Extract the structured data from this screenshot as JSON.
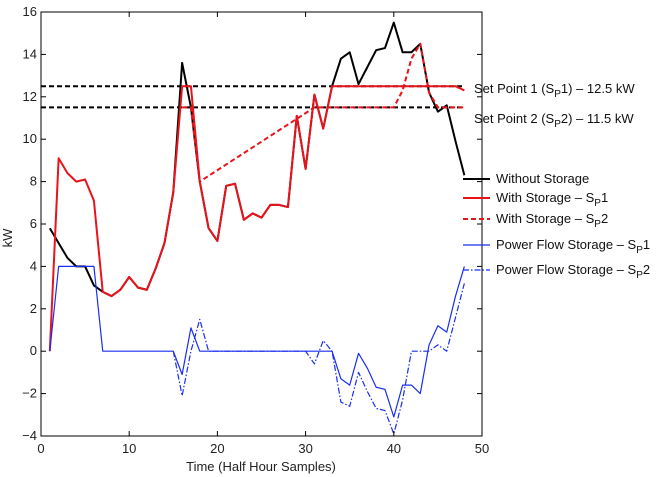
{
  "chart_data": {
    "type": "line",
    "title": "",
    "xlabel": "Time (Half Hour Samples)",
    "ylabel": "kW",
    "xlim": [
      0,
      50
    ],
    "ylim": [
      -4,
      16
    ],
    "x_ticks": [
      0,
      10,
      20,
      30,
      40,
      50
    ],
    "y_ticks": [
      -4,
      -2,
      0,
      2,
      4,
      6,
      8,
      10,
      12,
      14,
      16
    ],
    "grid": false,
    "legend_position": "right",
    "series": [
      {
        "name": "Without Storage",
        "color": "#000000",
        "dash": "solid",
        "points": [
          [
            1,
            5.8
          ],
          [
            2,
            5.1
          ],
          [
            3,
            4.4
          ],
          [
            4,
            4.0
          ],
          [
            5,
            4.0
          ],
          [
            6,
            3.1
          ],
          [
            7,
            2.8
          ],
          [
            8,
            2.6
          ],
          [
            9,
            2.9
          ],
          [
            10,
            3.5
          ],
          [
            11,
            3.0
          ],
          [
            12,
            2.9
          ],
          [
            13,
            3.9
          ],
          [
            14,
            5.1
          ],
          [
            15,
            7.5
          ],
          [
            16,
            13.6
          ],
          [
            17,
            11.5
          ],
          [
            18,
            8.0
          ],
          [
            19,
            5.8
          ],
          [
            20,
            5.2
          ],
          [
            21,
            7.8
          ],
          [
            22,
            7.9
          ],
          [
            23,
            6.2
          ],
          [
            24,
            6.5
          ],
          [
            25,
            6.3
          ],
          [
            26,
            6.9
          ],
          [
            27,
            6.9
          ],
          [
            28,
            6.8
          ],
          [
            29,
            11.1
          ],
          [
            30,
            8.6
          ],
          [
            31,
            12.1
          ],
          [
            32,
            10.5
          ],
          [
            33,
            12.5
          ],
          [
            34,
            13.8
          ],
          [
            35,
            14.1
          ],
          [
            36,
            12.6
          ],
          [
            37,
            13.4
          ],
          [
            38,
            14.2
          ],
          [
            39,
            14.3
          ],
          [
            40,
            15.5
          ],
          [
            41,
            14.1
          ],
          [
            42,
            14.1
          ],
          [
            43,
            14.5
          ],
          [
            44,
            12.2
          ],
          [
            45,
            11.3
          ],
          [
            46,
            11.6
          ],
          [
            47,
            9.9
          ],
          [
            48,
            8.3
          ]
        ]
      },
      {
        "name": "With Storage - SP1",
        "color": "#e8141c",
        "dash": "solid",
        "points": [
          [
            1,
            0.0
          ],
          [
            2,
            9.1
          ],
          [
            3,
            8.4
          ],
          [
            4,
            8.0
          ],
          [
            5,
            8.1
          ],
          [
            6,
            7.1
          ],
          [
            7,
            2.8
          ],
          [
            8,
            2.6
          ],
          [
            9,
            2.9
          ],
          [
            10,
            3.5
          ],
          [
            11,
            3.0
          ],
          [
            12,
            2.9
          ],
          [
            13,
            3.9
          ],
          [
            14,
            5.1
          ],
          [
            15,
            7.5
          ],
          [
            16,
            12.5
          ],
          [
            17,
            12.5
          ],
          [
            18,
            8.0
          ],
          [
            19,
            5.8
          ],
          [
            20,
            5.2
          ],
          [
            21,
            7.8
          ],
          [
            22,
            7.9
          ],
          [
            23,
            6.2
          ],
          [
            24,
            6.5
          ],
          [
            25,
            6.3
          ],
          [
            26,
            6.9
          ],
          [
            27,
            6.9
          ],
          [
            28,
            6.8
          ],
          [
            29,
            11.1
          ],
          [
            30,
            8.6
          ],
          [
            31,
            12.1
          ],
          [
            32,
            10.5
          ],
          [
            33,
            12.5
          ],
          [
            34,
            12.5
          ],
          [
            35,
            12.5
          ],
          [
            36,
            12.5
          ],
          [
            37,
            12.5
          ],
          [
            38,
            12.5
          ],
          [
            39,
            12.5
          ],
          [
            40,
            12.5
          ],
          [
            41,
            12.5
          ],
          [
            42,
            12.5
          ],
          [
            43,
            12.5
          ],
          [
            44,
            12.5
          ],
          [
            45,
            12.5
          ],
          [
            46,
            12.5
          ],
          [
            47,
            12.5
          ],
          [
            48,
            12.3
          ]
        ]
      },
      {
        "name": "With Storage - SP2",
        "color": "#e8141c",
        "dash": "dashed",
        "points": [
          [
            16,
            11.5
          ],
          [
            17,
            11.5
          ],
          [
            18,
            8.0
          ],
          [
            31,
            11.5
          ],
          [
            32,
            11.5
          ],
          [
            33,
            11.5
          ],
          [
            34,
            11.5
          ],
          [
            35,
            11.5
          ],
          [
            36,
            11.5
          ],
          [
            37,
            11.5
          ],
          [
            38,
            11.5
          ],
          [
            39,
            11.5
          ],
          [
            40,
            11.5
          ],
          [
            41,
            12.3
          ],
          [
            42,
            13.8
          ],
          [
            43,
            14.5
          ],
          [
            44,
            12.2
          ],
          [
            45,
            11.5
          ],
          [
            46,
            11.5
          ],
          [
            47,
            11.5
          ],
          [
            48,
            11.5
          ]
        ]
      },
      {
        "name": "Power Flow Storage - SP1",
        "color": "#1a2ef0",
        "dash": "solid",
        "points": [
          [
            1,
            0.0
          ],
          [
            2,
            4.0
          ],
          [
            3,
            4.0
          ],
          [
            4,
            4.0
          ],
          [
            5,
            4.0
          ],
          [
            6,
            4.0
          ],
          [
            7,
            0.0
          ],
          [
            8,
            0.0
          ],
          [
            9,
            0.0
          ],
          [
            10,
            0.0
          ],
          [
            11,
            0.0
          ],
          [
            12,
            0.0
          ],
          [
            13,
            0.0
          ],
          [
            14,
            0.0
          ],
          [
            15,
            0.0
          ],
          [
            16,
            -1.1
          ],
          [
            17,
            1.1
          ],
          [
            18,
            0.0
          ],
          [
            19,
            0.0
          ],
          [
            20,
            0.0
          ],
          [
            21,
            0.0
          ],
          [
            22,
            0.0
          ],
          [
            23,
            0.0
          ],
          [
            24,
            0.0
          ],
          [
            25,
            0.0
          ],
          [
            26,
            0.0
          ],
          [
            27,
            0.0
          ],
          [
            28,
            0.0
          ],
          [
            29,
            0.0
          ],
          [
            30,
            0.0
          ],
          [
            31,
            0.0
          ],
          [
            32,
            0.0
          ],
          [
            33,
            0.0
          ],
          [
            34,
            -1.3
          ],
          [
            35,
            -1.6
          ],
          [
            36,
            -0.1
          ],
          [
            37,
            -0.8
          ],
          [
            38,
            -1.7
          ],
          [
            39,
            -1.8
          ],
          [
            40,
            -3.1
          ],
          [
            41,
            -1.6
          ],
          [
            42,
            -1.6
          ],
          [
            43,
            -2.0
          ],
          [
            44,
            0.3
          ],
          [
            45,
            1.2
          ],
          [
            46,
            0.9
          ],
          [
            47,
            2.6
          ],
          [
            48,
            4.0
          ]
        ]
      },
      {
        "name": "Power Flow Storage - SP2",
        "color": "#1a2ef0",
        "dash": "dashdot",
        "points": [
          [
            15,
            0.0
          ],
          [
            16,
            -2.1
          ],
          [
            17,
            0.0
          ],
          [
            18,
            1.5
          ],
          [
            19,
            0.0
          ],
          [
            30,
            0.0
          ],
          [
            31,
            -0.6
          ],
          [
            32,
            0.5
          ],
          [
            33,
            0.0
          ],
          [
            34,
            -2.4
          ],
          [
            35,
            -2.6
          ],
          [
            36,
            -1.0
          ],
          [
            37,
            -1.9
          ],
          [
            38,
            -2.7
          ],
          [
            39,
            -2.8
          ],
          [
            40,
            -3.9
          ],
          [
            41,
            -2.3
          ],
          [
            42,
            0.0
          ],
          [
            43,
            0.0
          ],
          [
            44,
            0.0
          ],
          [
            45,
            0.3
          ],
          [
            46,
            0.0
          ],
          [
            47,
            1.6
          ],
          [
            48,
            3.2
          ]
        ]
      }
    ],
    "reference_lines": [
      {
        "label": "Set Point 1 (SP1) – 12.5 kW",
        "value": 12.5,
        "color": "#000000",
        "dash": "dashed",
        "x_range": [
          0,
          48
        ]
      },
      {
        "label": "Set Point 2 (SP2) – 11.5 kW",
        "value": 11.5,
        "color": "#000000",
        "dash": "dashed",
        "x_range": [
          0,
          48
        ]
      }
    ]
  },
  "annotations": {
    "set_point_1": {
      "prefix": "Set Point 1 (S",
      "sub": "P",
      "suffix": "1) – 12.5 kW"
    },
    "set_point_2": {
      "prefix": "Set Point 2 (S",
      "sub": "P",
      "suffix": "2) – 11.5 kW"
    }
  },
  "legend": [
    {
      "prefix": "Without Storage",
      "sub": "",
      "suffix": ""
    },
    {
      "prefix": "With Storage – S",
      "sub": "P",
      "suffix": "1"
    },
    {
      "prefix": "With Storage – S",
      "sub": "P",
      "suffix": "2"
    },
    {
      "prefix": "Power Flow Storage – S",
      "sub": "P",
      "suffix": "1"
    },
    {
      "prefix": "Power Flow Storage – S",
      "sub": "P",
      "suffix": "2"
    }
  ]
}
